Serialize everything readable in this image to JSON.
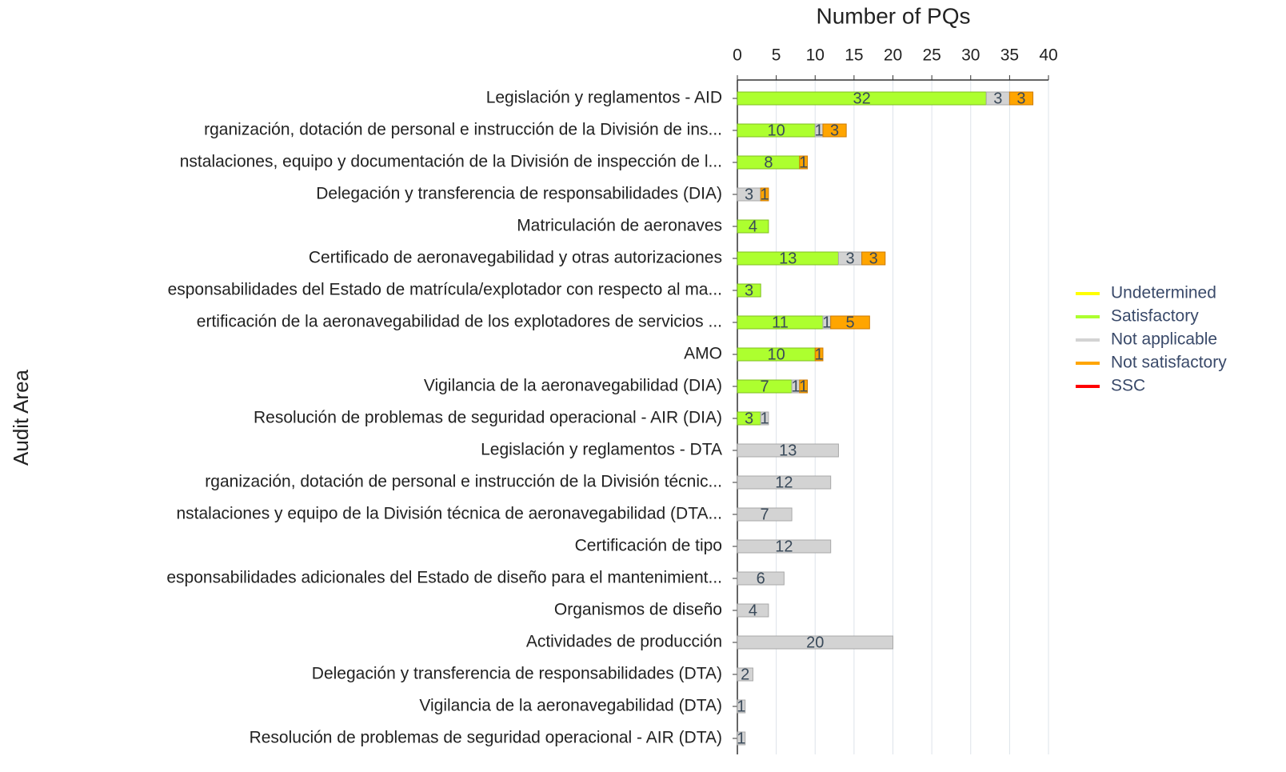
{
  "chart_data": {
    "type": "bar",
    "orientation": "horizontal",
    "stacked": true,
    "title": "Number of PQs",
    "y_label": "Audit Area",
    "categories": [
      "Legislación y reglamentos - AID",
      "rganización, dotación de personal e instrucción de la División de ins...",
      "nstalaciones, equipo y documentación de la División de inspección de l...",
      "Delegación y transferencia de responsabilidades (DIA)",
      "Matriculación de aeronaves",
      "Certificado de aeronavegabilidad y otras autorizaciones",
      "esponsabilidades del Estado de matrícula/explotador con respecto al ma...",
      "ertificación de la aeronavegabilidad de los explotadores de servicios ...",
      "AMO",
      "Vigilancia de la aeronavegabilidad (DIA)",
      "Resolución de problemas de seguridad operacional - AIR (DIA)",
      "Legislación y reglamentos - DTA",
      "rganización, dotación de personal e instrucción de la División técnic...",
      "nstalaciones y equipo de la División técnica de aeronavegabilidad (DTA...",
      "Certificación de tipo",
      "esponsabilidades adicionales del Estado de diseño para el mantenimient...",
      "Organismos de diseño",
      "Actividades de producción",
      "Delegación y transferencia de responsabilidades (DTA)",
      "Vigilancia de la aeronavegabilidad (DTA)",
      "Resolución de problemas de seguridad operacional - AIR (DTA)"
    ],
    "series": [
      {
        "name": "Undetermined",
        "color": "#ffff00",
        "values": [
          0,
          0,
          0,
          0,
          0,
          0,
          0,
          0,
          0,
          0,
          0,
          0,
          0,
          0,
          0,
          0,
          0,
          0,
          0,
          0,
          0
        ]
      },
      {
        "name": "Satisfactory",
        "color": "#adff2f",
        "values": [
          32,
          10,
          8,
          0,
          4,
          13,
          3,
          11,
          10,
          7,
          3,
          0,
          0,
          0,
          0,
          0,
          0,
          0,
          0,
          0,
          0
        ]
      },
      {
        "name": "Not applicable",
        "color": "#d3d3d3",
        "values": [
          3,
          1,
          0,
          3,
          0,
          3,
          0,
          1,
          0,
          1,
          1,
          13,
          12,
          7,
          12,
          6,
          4,
          20,
          2,
          1,
          1
        ]
      },
      {
        "name": "Not satisfactory",
        "color": "#ffa500",
        "values": [
          3,
          3,
          1,
          1,
          0,
          3,
          0,
          5,
          1,
          1,
          0,
          0,
          0,
          0,
          0,
          0,
          0,
          0,
          0,
          0,
          0
        ]
      },
      {
        "name": "SSC",
        "color": "#ff0000",
        "values": [
          0,
          0,
          0,
          0,
          0,
          0,
          0,
          0,
          0,
          0,
          0,
          0,
          0,
          0,
          0,
          0,
          0,
          0,
          0,
          0,
          0
        ]
      }
    ],
    "xlim": [
      0,
      40
    ],
    "xticks": [
      0,
      5,
      10,
      15,
      20,
      25,
      30,
      35,
      40
    ],
    "grid": true,
    "legend": "right"
  }
}
